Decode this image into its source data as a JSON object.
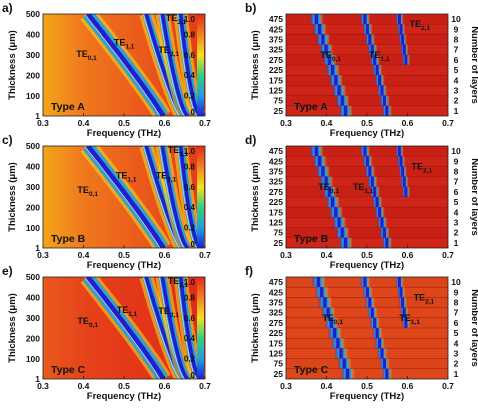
{
  "colors": {
    "low": "#1f1fd0",
    "mid": "#f5e21b",
    "high": "#e12a1a",
    "dark": "#8b1010",
    "curve": "#c9c9c9"
  },
  "chart_data": [
    {
      "panel_label": "a)",
      "type": "heatmap",
      "variant": "continuous",
      "type_label": "Type A",
      "xlabel": "Frequency (THz)",
      "ylabel": "Thickness (μm)",
      "xlim": [
        0.3,
        0.7
      ],
      "ylim": [
        1,
        500
      ],
      "x_ticks": [
        "0.3",
        "0.4",
        "0.5",
        "0.6",
        "0.7"
      ],
      "y_ticks": [
        "1",
        "100",
        "200",
        "300",
        "400",
        "500"
      ],
      "colorbar_ticks": [
        "0",
        "0.2",
        "0.4",
        "0.6",
        "0.8",
        "1.0"
      ],
      "modes": [
        {
          "name": "TE",
          "sub": "0,1",
          "f0": 0.41,
          "f1": 0.596,
          "k": 1.08
        },
        {
          "name": "TE",
          "sub": "1,1",
          "f0": 0.555,
          "f1": 0.644,
          "k": 0.82
        },
        {
          "name": "TE",
          "sub": "2,1",
          "f0": 0.595,
          "f1": 0.658,
          "k": 0.65
        },
        {
          "name": "TE",
          "sub": "3,1",
          "f0": 0.64,
          "f1": 0.69,
          "k": 0.55
        }
      ],
      "mode_labels": [
        {
          "text": "TE",
          "sub": "0,1",
          "x": 0.382,
          "y": 290
        },
        {
          "text": "TE",
          "sub": "1,1",
          "x": 0.475,
          "y": 345
        },
        {
          "text": "TE",
          "sub": "2,1",
          "x": 0.585,
          "y": 310
        },
        {
          "text": "TE",
          "sub": "3,1",
          "x": 0.603,
          "y": 465
        }
      ]
    },
    {
      "panel_label": "b)",
      "type": "heatmap",
      "variant": "layers",
      "type_label": "Type A",
      "xlabel": "Frequency (THz)",
      "ylabel": "Thickness (μm)",
      "y2label": "Number of layers",
      "xlim": [
        0.3,
        0.7
      ],
      "x_ticks": [
        "0.3",
        "0.4",
        "0.5",
        "0.6",
        "0.7"
      ],
      "thickness_labels": [
        "475",
        "425",
        "375",
        "325",
        "275",
        "225",
        "175",
        "125",
        "75",
        "25"
      ],
      "layer_labels": [
        "10",
        "9",
        "8",
        "7",
        "6",
        "5",
        "4",
        "3",
        "2",
        "1"
      ],
      "mode_labels": [
        {
          "text": "TE",
          "sub": "0,1",
          "x": 0.385,
          "row": 6
        },
        {
          "text": "TE",
          "sub": "1,1",
          "x": 0.505,
          "row": 6
        },
        {
          "text": "TE",
          "sub": "2,1",
          "x": 0.605,
          "row": 9
        }
      ]
    },
    {
      "panel_label": "c)",
      "type": "heatmap",
      "variant": "continuous",
      "type_label": "Type B",
      "xlabel": "Frequency (THz)",
      "ylabel": "Thickness (μm)",
      "xlim": [
        0.3,
        0.7
      ],
      "ylim": [
        1,
        500
      ],
      "x_ticks": [
        "0.3",
        "0.4",
        "0.5",
        "0.6",
        "0.7"
      ],
      "y_ticks": [
        "1",
        "100",
        "200",
        "300",
        "400",
        "500"
      ],
      "colorbar_ticks": [
        "0",
        "0.2",
        "0.4",
        "0.6",
        "0.8",
        "1.0"
      ],
      "modes": [
        {
          "name": "TE",
          "sub": "0,1",
          "f0": 0.41,
          "f1": 0.596,
          "k": 1.08
        },
        {
          "name": "TE",
          "sub": "1,1",
          "f0": 0.555,
          "f1": 0.644,
          "k": 0.82
        },
        {
          "name": "TE",
          "sub": "2,1",
          "f0": 0.595,
          "f1": 0.658,
          "k": 0.65
        },
        {
          "name": "TE",
          "sub": "3,1",
          "f0": 0.64,
          "f1": 0.69,
          "k": 0.55
        }
      ],
      "mode_labels": [
        {
          "text": "TE",
          "sub": "0,1",
          "x": 0.385,
          "y": 270
        },
        {
          "text": "TE",
          "sub": "1,1",
          "x": 0.48,
          "y": 340
        },
        {
          "text": "TE",
          "sub": "2,1",
          "x": 0.578,
          "y": 340
        },
        {
          "text": "TE",
          "sub": "3,1",
          "x": 0.608,
          "y": 465
        }
      ]
    },
    {
      "panel_label": "d)",
      "type": "heatmap",
      "variant": "layers",
      "type_label": "Type B",
      "xlabel": "Frequency (THz)",
      "ylabel": "Thickness (μm)",
      "y2label": "Number of layers",
      "xlim": [
        0.3,
        0.7
      ],
      "x_ticks": [
        "0.3",
        "0.4",
        "0.5",
        "0.6",
        "0.7"
      ],
      "thickness_labels": [
        "475",
        "425",
        "375",
        "325",
        "275",
        "225",
        "175",
        "125",
        "75",
        "25"
      ],
      "layer_labels": [
        "10",
        "9",
        "8",
        "7",
        "6",
        "5",
        "4",
        "3",
        "2",
        "1"
      ],
      "mode_labels": [
        {
          "text": "TE",
          "sub": "0,1",
          "x": 0.38,
          "row": 6
        },
        {
          "text": "TE",
          "sub": "1,1",
          "x": 0.465,
          "row": 6
        },
        {
          "text": "TE",
          "sub": "2,1",
          "x": 0.61,
          "row": 8
        }
      ]
    },
    {
      "panel_label": "e)",
      "type": "heatmap",
      "variant": "continuous",
      "type_label": "Type C",
      "xlabel": "Frequency (THz)",
      "ylabel": "Thickness (μm)",
      "xlim": [
        0.3,
        0.7
      ],
      "ylim": [
        1,
        500
      ],
      "x_ticks": [
        "0.3",
        "0.4",
        "0.5",
        "0.6",
        "0.7"
      ],
      "y_ticks": [
        "1",
        "100",
        "200",
        "300",
        "400",
        "500"
      ],
      "colorbar_ticks": [
        "0",
        "0.2",
        "0.4",
        "0.6",
        "0.8",
        "1.0"
      ],
      "modes": [
        {
          "name": "TE",
          "sub": "0,1",
          "f0": 0.41,
          "f1": 0.596,
          "k": 1.08
        },
        {
          "name": "TE",
          "sub": "1,1",
          "f0": 0.555,
          "f1": 0.644,
          "k": 0.82
        },
        {
          "name": "TE",
          "sub": "2,1",
          "f0": 0.595,
          "f1": 0.658,
          "k": 0.65
        },
        {
          "name": "TE",
          "sub": "3,1",
          "f0": 0.64,
          "f1": 0.69,
          "k": 0.55
        }
      ],
      "mode_labels": [
        {
          "text": "TE",
          "sub": "0,1",
          "x": 0.385,
          "y": 270
        },
        {
          "text": "TE",
          "sub": "1,1",
          "x": 0.482,
          "y": 325
        },
        {
          "text": "TE",
          "sub": "2,1",
          "x": 0.585,
          "y": 320
        },
        {
          "text": "TE",
          "sub": "3,1",
          "x": 0.608,
          "y": 465
        }
      ]
    },
    {
      "panel_label": "f)",
      "type": "heatmap",
      "variant": "layers",
      "type_label": "Type C",
      "xlabel": "Frequency (THz)",
      "ylabel": "Thickness (μm)",
      "y2label": "Number of layers",
      "xlim": [
        0.3,
        0.7
      ],
      "x_ticks": [
        "0.3",
        "0.4",
        "0.5",
        "0.6",
        "0.7"
      ],
      "thickness_labels": [
        "475",
        "425",
        "375",
        "325",
        "275",
        "225",
        "175",
        "125",
        "75",
        "25"
      ],
      "layer_labels": [
        "10",
        "9",
        "8",
        "7",
        "6",
        "5",
        "4",
        "3",
        "2",
        "1"
      ],
      "mode_labels": [
        {
          "text": "TE",
          "sub": "0,1",
          "x": 0.39,
          "row": 6
        },
        {
          "text": "TE",
          "sub": "1,1",
          "x": 0.58,
          "row": 6
        },
        {
          "text": "TE",
          "sub": "2,1",
          "x": 0.615,
          "row": 8
        }
      ]
    }
  ]
}
